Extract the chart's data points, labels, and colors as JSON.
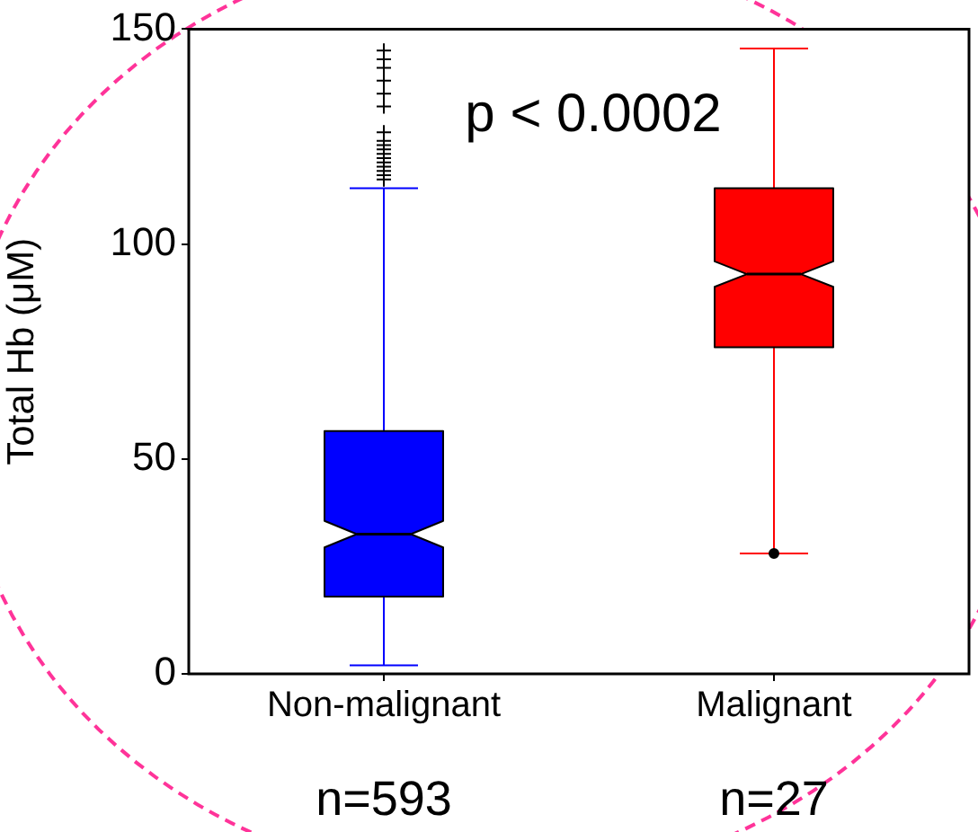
{
  "chart_data": {
    "type": "box",
    "ylabel": "Total Hb (μM)",
    "categories": [
      "Non-malignant",
      "Malignant"
    ],
    "ylim": [
      0,
      150
    ],
    "yticks": [
      0,
      50,
      100,
      150
    ],
    "grid": false,
    "legend": false,
    "series": [
      {
        "color": "#0000ff",
        "marker": "cross",
        "boxes": [
          {
            "low": 2,
            "q1": 18,
            "median": 32.5,
            "q3": 56.5,
            "high": 113,
            "outliers": [
              115,
              116,
              117,
              118,
              119,
              120,
              121,
              122,
              123,
              124,
              126,
              132,
              135,
              138,
              141,
              143,
              145
            ]
          },
          null
        ]
      },
      {
        "color": "#ff0000",
        "marker": "circle",
        "boxes": [
          null,
          {
            "low": 28,
            "q1": 76,
            "median": 93,
            "q3": 113,
            "high": 145.5,
            "outliers": [
              28
            ]
          }
        ]
      }
    ],
    "annotations": [
      "p < 0.0002",
      "n=593",
      "n=27"
    ]
  }
}
